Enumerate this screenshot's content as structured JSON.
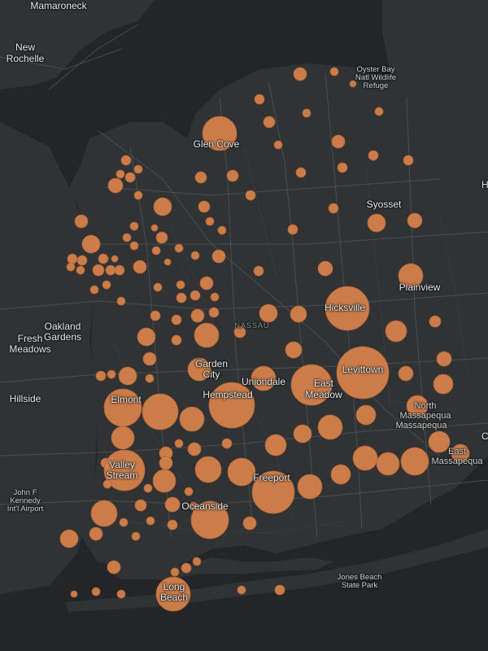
{
  "map": {
    "colors": {
      "water": "#232527",
      "land": "#303234",
      "roads": "#4a4c4f",
      "bubble_fill": "#d9824a",
      "bubble_stroke": "#a9643a"
    },
    "labels": {
      "mamaroneck": "Mamaroneck",
      "new_rochelle_1": "New",
      "new_rochelle_2": "Rochelle",
      "oyster_bay_1": "Oyster Bay",
      "oyster_bay_2": "Natl Wildlife",
      "oyster_bay_3": "Refuge",
      "glen_cove": "Glen Cove",
      "syosset": "Syosset",
      "plainview": "Plainview",
      "hicksville": "Hicksville",
      "oakland_gardens_1": "Oakland",
      "oakland_gardens_2": "Gardens",
      "fresh_meadows_1": "Fresh",
      "fresh_meadows_2": "Meadows",
      "nassau": "NASSAU",
      "levittown": "Levittown",
      "garden_city_1": "Garden",
      "garden_city_2": "City",
      "uniondale": "Uniondale",
      "east_meadow_1": "East",
      "east_meadow_2": "Meadow",
      "hillside": "Hillside",
      "elmont": "Elmont",
      "hempstead": "Hempstead",
      "north_massapequa_1": "North",
      "north_massapequa_2": "Massapequa",
      "massapequa": "Massapequa",
      "east_massapequa_1": "East",
      "east_massapequa_2": "Massapequa",
      "valley_stream_1": "Valley",
      "valley_stream_2": "Stream",
      "freeport": "Freeport",
      "jfk_1": "John F",
      "jfk_2": "Kennedy",
      "jfk_3": "Int'l Airport",
      "oceanside": "Oceanside",
      "jones_beach_1": "Jones Beach",
      "jones_beach_2": "State Park",
      "long_beach_1": "Long",
      "long_beach_2": "Beach",
      "edge_h": "H",
      "edge_c": "C"
    },
    "bubble_levels": [
      {
        "area": "Hicksville",
        "level": 0.55
      },
      {
        "area": "Levittown",
        "level": 0.62
      },
      {
        "area": "Hempstead",
        "level": 0.58
      },
      {
        "area": "Freeport",
        "level": 0.55
      },
      {
        "area": "East Meadow",
        "level": 0.5
      },
      {
        "area": "Glen Cove",
        "level": 0.4
      },
      {
        "area": "Oceanside",
        "level": 0.46
      },
      {
        "area": "Valley Stream",
        "level": 0.5
      },
      {
        "area": "Elmont",
        "level": 0.46
      },
      {
        "area": "Long Beach",
        "level": 0.42
      },
      {
        "area": "Plainview",
        "level": 0.3
      },
      {
        "area": "Syosset",
        "level": 0.24
      }
    ]
  }
}
